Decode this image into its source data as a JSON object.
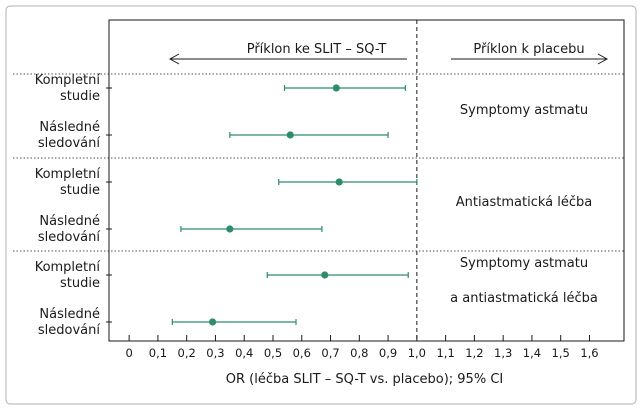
{
  "chart_data": {
    "type": "forest",
    "header_left": "Příklon ke SLIT – SQ-T",
    "header_right": "Příklon k placebu",
    "xlabel": "OR (léčba SLIT – SQ-T vs. placebo); 95% CI",
    "xlim": [
      -0.07,
      1.72
    ],
    "reference_line": 1.0,
    "x_ticks": [
      0,
      0.1,
      0.2,
      0.3,
      0.4,
      0.5,
      0.6,
      0.7,
      0.8,
      0.9,
      1.0,
      1.1,
      1.2,
      1.3,
      1.4,
      1.5,
      1.6
    ],
    "x_tick_labels": [
      "0",
      "0,1",
      "0,2",
      "0,3",
      "0,4",
      "0,5",
      "0,6",
      "0,7",
      "0,8",
      "0,9",
      "1,0",
      "1,1",
      "1,2",
      "1,3",
      "1,4",
      "1,5",
      "1,6"
    ],
    "groups": [
      {
        "label_lines": [
          "Symptomy astmatu"
        ],
        "rows": [
          {
            "label_lines": [
              "Kompletní",
              "studie"
            ],
            "or": 0.72,
            "ci_low": 0.54,
            "ci_high": 0.96
          },
          {
            "label_lines": [
              "Následné",
              "sledování"
            ],
            "or": 0.56,
            "ci_low": 0.35,
            "ci_high": 0.9
          }
        ]
      },
      {
        "label_lines": [
          "Antiastmatická léčba"
        ],
        "rows": [
          {
            "label_lines": [
              "Kompletní",
              "studie"
            ],
            "or": 0.73,
            "ci_low": 0.52,
            "ci_high": 1.0
          },
          {
            "label_lines": [
              "Následné",
              "sledování"
            ],
            "or": 0.35,
            "ci_low": 0.18,
            "ci_high": 0.67
          }
        ]
      },
      {
        "label_lines": [
          "Symptomy astmatu",
          "a antiastmatická léčba"
        ],
        "rows": [
          {
            "label_lines": [
              "Kompletní",
              "studie"
            ],
            "or": 0.68,
            "ci_low": 0.48,
            "ci_high": 0.97
          },
          {
            "label_lines": [
              "Následné",
              "sledování"
            ],
            "or": 0.29,
            "ci_low": 0.15,
            "ci_high": 0.58
          }
        ]
      }
    ],
    "colors": {
      "marker": "#2e8b6e",
      "axis": "#1a1a1a",
      "outer_border": "#b0b0b0"
    }
  }
}
